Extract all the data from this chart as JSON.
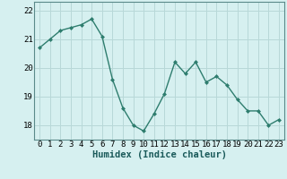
{
  "x": [
    0,
    1,
    2,
    3,
    4,
    5,
    6,
    7,
    8,
    9,
    10,
    11,
    12,
    13,
    14,
    15,
    16,
    17,
    18,
    19,
    20,
    21,
    22,
    23
  ],
  "y": [
    20.7,
    21.0,
    21.3,
    21.4,
    21.5,
    21.7,
    21.1,
    19.6,
    18.6,
    18.0,
    17.8,
    18.4,
    19.1,
    20.2,
    19.8,
    20.2,
    19.5,
    19.7,
    19.4,
    18.9,
    18.5,
    18.5,
    18.0,
    18.2
  ],
  "line_color": "#2e7d6e",
  "marker": "D",
  "marker_size": 2,
  "bg_color": "#d6f0f0",
  "grid_color": "#b8d8d8",
  "xlabel": "Humidex (Indice chaleur)",
  "xlabel_fontsize": 7.5,
  "tick_fontsize": 6.5,
  "ylim": [
    17.5,
    22.3
  ],
  "yticks": [
    18,
    19,
    20,
    21,
    22
  ],
  "xlim": [
    -0.5,
    23.5
  ]
}
